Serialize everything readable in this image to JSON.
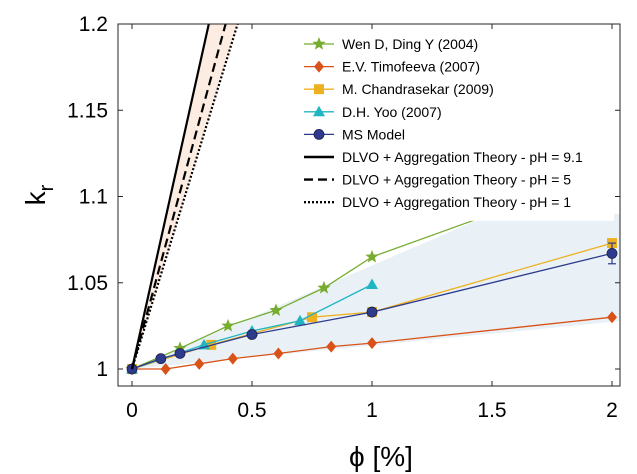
{
  "chart_data": {
    "type": "line",
    "xlabel": "ϕ [%]",
    "ylabel": "k",
    "ylabel_sub": "r",
    "xlim": [
      0,
      2.05
    ],
    "ylim": [
      0.99,
      1.2
    ],
    "x_ticks": [
      0,
      0.5,
      1,
      1.5,
      2
    ],
    "x_tick_labels": [
      "0",
      "0.5",
      "1",
      "1.5",
      "2"
    ],
    "y_ticks": [
      1,
      1.05,
      1.1,
      1.15,
      1.2
    ],
    "y_tick_labels": [
      "1",
      "1.05",
      "1.1",
      "1.15",
      "1.2"
    ],
    "grid": false,
    "legend_position": "top-right",
    "series": [
      {
        "name": "Wen D, Ding Y (2004)",
        "color": "#77ac30",
        "marker": "star",
        "x": [
          0,
          0.2,
          0.4,
          0.6,
          0.8,
          1.0,
          1.5
        ],
        "y": [
          1.0,
          1.012,
          1.025,
          1.034,
          1.047,
          1.065,
          1.09
        ]
      },
      {
        "name": "E.V. Timofeeva (2007)",
        "color": "#d95319",
        "marker": "diamond",
        "x": [
          0,
          0.14,
          0.28,
          0.42,
          0.61,
          0.83,
          1.0,
          2.0
        ],
        "y": [
          1.0,
          1.0,
          1.003,
          1.006,
          1.009,
          1.013,
          1.015,
          1.03
        ]
      },
      {
        "name": "M. Chandrasekar (2009)",
        "color": "#edb120",
        "marker": "square",
        "x": [
          0,
          0.33,
          0.75,
          1.0,
          2.0
        ],
        "y": [
          1.0,
          1.014,
          1.03,
          1.033,
          1.073
        ]
      },
      {
        "name": "D.H. Yoo (2007)",
        "color": "#21b5c4",
        "marker": "triangle",
        "x": [
          0,
          0.3,
          0.5,
          0.7,
          1.0
        ],
        "y": [
          1.0,
          1.014,
          1.022,
          1.028,
          1.049
        ]
      },
      {
        "name": "MS Model",
        "color": "#2e3a8c",
        "marker": "circle",
        "x": [
          0,
          0.12,
          0.2,
          0.5,
          1.0,
          2.0
        ],
        "y": [
          1.0,
          1.006,
          1.009,
          1.02,
          1.033,
          1.067
        ],
        "error_bar": {
          "x": 2.0,
          "low": 1.061,
          "high": 1.073
        }
      },
      {
        "name": "DLVO + Aggregation Theory - pH = 9.1",
        "color": "#000000",
        "line_style": "solid",
        "x": [
          0,
          0.32
        ],
        "y": [
          1.0,
          1.2
        ]
      },
      {
        "name": "DLVO + Aggregation Theory - pH = 5",
        "color": "#000000",
        "line_style": "dashed",
        "x": [
          0,
          0.39
        ],
        "y": [
          1.0,
          1.2
        ]
      },
      {
        "name": "DLVO + Aggregation Theory - pH = 1",
        "color": "#000000",
        "line_style": "dotted",
        "x": [
          0,
          0.44
        ],
        "y": [
          1.0,
          1.2
        ]
      }
    ],
    "shaded_regions": [
      {
        "color": "#dbe8f2",
        "opacity": 0.6,
        "x": [
          0,
          1.5,
          2.05,
          2.05,
          0
        ],
        "y": [
          1.0,
          1.09,
          1.09,
          1.028,
          1.0
        ]
      },
      {
        "color": "#fbd9c4",
        "opacity": 0.5,
        "x": [
          0,
          0.32,
          0.44
        ],
        "y": [
          1.0,
          1.2,
          1.2
        ]
      }
    ]
  }
}
